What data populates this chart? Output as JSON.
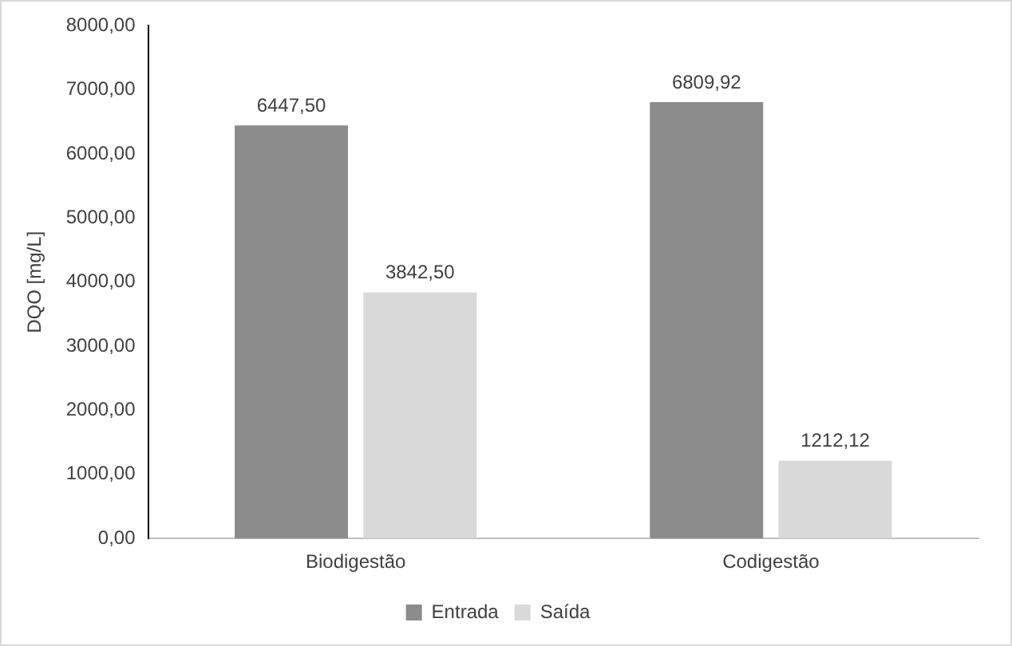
{
  "chart_data": {
    "type": "bar",
    "ylabel": "DQO [mg/L]",
    "categories": [
      "Biodigestão",
      "Codigestão"
    ],
    "series": [
      {
        "name": "Entrada",
        "color": "#8c8c8c",
        "values": [
          6447.5,
          6809.92
        ],
        "value_labels": [
          "6447,50",
          "6809,92"
        ]
      },
      {
        "name": "Saída",
        "color": "#d9d9d9",
        "values": [
          3842.5,
          1212.12
        ],
        "value_labels": [
          "3842,50",
          "1212,12"
        ]
      }
    ],
    "ylim": [
      0,
      8000
    ],
    "yticks": [
      {
        "value": 0,
        "label": "0,00"
      },
      {
        "value": 1000,
        "label": "1000,00"
      },
      {
        "value": 2000,
        "label": "2000,00"
      },
      {
        "value": 3000,
        "label": "3000,00"
      },
      {
        "value": 4000,
        "label": "4000,00"
      },
      {
        "value": 5000,
        "label": "5000,00"
      },
      {
        "value": 6000,
        "label": "6000,00"
      },
      {
        "value": 7000,
        "label": "7000,00"
      },
      {
        "value": 8000,
        "label": "8000,00"
      }
    ],
    "grid": false,
    "legend": "bottom"
  }
}
